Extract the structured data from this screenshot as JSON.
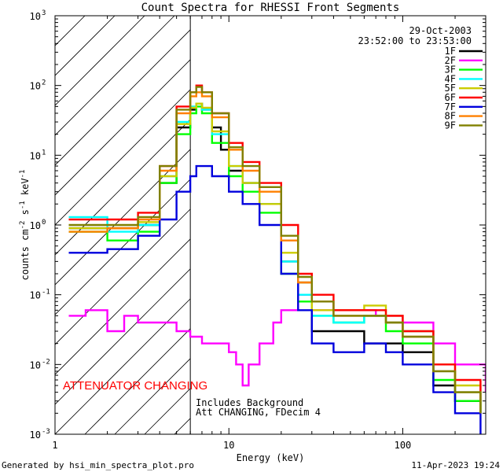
{
  "chart_data": {
    "type": "line",
    "title": "Count Spectra for RHESSI Front Segments",
    "xlabel": "Energy (keV)",
    "ylabel": "counts cm^-2 s^-1 keV^-1",
    "xscale": "log",
    "yscale": "log",
    "xlim": [
      1,
      300
    ],
    "ylim": [
      0.001,
      1000
    ],
    "x_tick_labels": [
      "1",
      "10",
      "100"
    ],
    "y_tick_labels": [
      {
        "base": "10",
        "exp": "-3"
      },
      {
        "base": "10",
        "exp": "-2"
      },
      {
        "base": "10",
        "exp": "-1"
      },
      {
        "base": "10",
        "exp": "0"
      },
      {
        "base": "10",
        "exp": "1"
      },
      {
        "base": "10",
        "exp": "2"
      },
      {
        "base": "10",
        "exp": "3"
      }
    ],
    "attenuator_boundary_kev": 6,
    "legend_header": {
      "date": "29-Oct-2003",
      "time_range": "23:52:00 to 23:53:00"
    },
    "annotations": {
      "attenuator": "ATTENUATOR CHANGING",
      "line1": "Includes Background",
      "line2": "Att CHANGING, FDecim 4"
    },
    "series": [
      {
        "name": "1F",
        "color": "#000000",
        "points": [
          [
            1.2,
            0.9
          ],
          [
            2,
            0.9
          ],
          [
            3,
            1.0
          ],
          [
            4,
            4
          ],
          [
            5,
            25
          ],
          [
            6,
            45
          ],
          [
            6.5,
            55
          ],
          [
            7,
            45
          ],
          [
            8,
            25
          ],
          [
            9,
            12
          ],
          [
            10,
            6
          ],
          [
            12,
            4
          ],
          [
            15,
            2
          ],
          [
            20,
            0.3
          ],
          [
            25,
            0.15
          ],
          [
            30,
            0.03
          ],
          [
            40,
            0.03
          ],
          [
            60,
            0.02
          ],
          [
            80,
            0.02
          ],
          [
            100,
            0.015
          ],
          [
            150,
            0.005
          ],
          [
            200,
            0.003
          ],
          [
            280,
            0.002
          ]
        ]
      },
      {
        "name": "2F",
        "color": "#ff00ff",
        "points": [
          [
            1.2,
            0.05
          ],
          [
            1.5,
            0.06
          ],
          [
            2,
            0.03
          ],
          [
            2.5,
            0.05
          ],
          [
            3,
            0.04
          ],
          [
            4,
            0.04
          ],
          [
            5,
            0.03
          ],
          [
            6,
            0.025
          ],
          [
            7,
            0.02
          ],
          [
            8,
            0.02
          ],
          [
            9,
            0.02
          ],
          [
            10,
            0.015
          ],
          [
            11,
            0.01
          ],
          [
            12,
            0.005
          ],
          [
            13,
            0.01
          ],
          [
            15,
            0.02
          ],
          [
            18,
            0.04
          ],
          [
            20,
            0.06
          ],
          [
            25,
            0.1
          ],
          [
            30,
            0.06
          ],
          [
            50,
            0.06
          ],
          [
            70,
            0.05
          ],
          [
            100,
            0.04
          ],
          [
            150,
            0.02
          ],
          [
            200,
            0.01
          ],
          [
            300,
            0.004
          ]
        ]
      },
      {
        "name": "3F",
        "color": "#00ff00",
        "points": [
          [
            1.2,
            0.8
          ],
          [
            2,
            0.6
          ],
          [
            3,
            0.8
          ],
          [
            4,
            4
          ],
          [
            5,
            20
          ],
          [
            6,
            40
          ],
          [
            6.5,
            50
          ],
          [
            7,
            40
          ],
          [
            8,
            15
          ],
          [
            10,
            5
          ],
          [
            12,
            3
          ],
          [
            15,
            1.5
          ],
          [
            20,
            0.2
          ],
          [
            25,
            0.08
          ],
          [
            30,
            0.05
          ],
          [
            40,
            0.04
          ],
          [
            60,
            0.05
          ],
          [
            80,
            0.03
          ],
          [
            100,
            0.02
          ],
          [
            150,
            0.006
          ],
          [
            200,
            0.003
          ],
          [
            280,
            0.002
          ]
        ]
      },
      {
        "name": "4F",
        "color": "#00ffff",
        "points": [
          [
            1.2,
            1.3
          ],
          [
            2,
            0.8
          ],
          [
            3,
            1.0
          ],
          [
            4,
            5
          ],
          [
            5,
            30
          ],
          [
            6,
            50
          ],
          [
            6.5,
            55
          ],
          [
            7,
            45
          ],
          [
            8,
            20
          ],
          [
            10,
            7
          ],
          [
            12,
            4
          ],
          [
            15,
            2
          ],
          [
            20,
            0.3
          ],
          [
            25,
            0.1
          ],
          [
            30,
            0.05
          ],
          [
            40,
            0.04
          ],
          [
            60,
            0.05
          ],
          [
            80,
            0.04
          ],
          [
            100,
            0.03
          ],
          [
            150,
            0.008
          ],
          [
            200,
            0.004
          ],
          [
            280,
            0.002
          ]
        ]
      },
      {
        "name": "5F",
        "color": "#cccc00",
        "points": [
          [
            1.2,
            0.9
          ],
          [
            2,
            0.9
          ],
          [
            3,
            1.1
          ],
          [
            4,
            5
          ],
          [
            5,
            28
          ],
          [
            6,
            48
          ],
          [
            6.5,
            55
          ],
          [
            7,
            48
          ],
          [
            8,
            22
          ],
          [
            10,
            7
          ],
          [
            12,
            4
          ],
          [
            15,
            2
          ],
          [
            20,
            0.4
          ],
          [
            25,
            0.15
          ],
          [
            30,
            0.06
          ],
          [
            40,
            0.06
          ],
          [
            60,
            0.07
          ],
          [
            80,
            0.05
          ],
          [
            100,
            0.03
          ],
          [
            150,
            0.01
          ],
          [
            200,
            0.005
          ],
          [
            280,
            0.002
          ]
        ]
      },
      {
        "name": "6F",
        "color": "#ff0000",
        "points": [
          [
            1.2,
            1.2
          ],
          [
            2,
            1.2
          ],
          [
            3,
            1.5
          ],
          [
            4,
            7
          ],
          [
            5,
            50
          ],
          [
            6,
            80
          ],
          [
            6.5,
            100
          ],
          [
            7,
            80
          ],
          [
            8,
            40
          ],
          [
            10,
            15
          ],
          [
            12,
            8
          ],
          [
            15,
            4
          ],
          [
            20,
            1
          ],
          [
            25,
            0.2
          ],
          [
            30,
            0.1
          ],
          [
            40,
            0.06
          ],
          [
            60,
            0.06
          ],
          [
            80,
            0.05
          ],
          [
            100,
            0.03
          ],
          [
            150,
            0.01
          ],
          [
            200,
            0.006
          ],
          [
            280,
            0.003
          ]
        ]
      },
      {
        "name": "7F",
        "color": "#0000dd",
        "points": [
          [
            1.2,
            0.4
          ],
          [
            1.5,
            0.4
          ],
          [
            2,
            0.45
          ],
          [
            3,
            0.7
          ],
          [
            4,
            1.2
          ],
          [
            5,
            3
          ],
          [
            6,
            5
          ],
          [
            6.5,
            7
          ],
          [
            7,
            7
          ],
          [
            8,
            5
          ],
          [
            10,
            3
          ],
          [
            12,
            2
          ],
          [
            15,
            1
          ],
          [
            20,
            0.2
          ],
          [
            25,
            0.06
          ],
          [
            30,
            0.02
          ],
          [
            40,
            0.015
          ],
          [
            60,
            0.02
          ],
          [
            80,
            0.015
          ],
          [
            100,
            0.01
          ],
          [
            150,
            0.004
          ],
          [
            200,
            0.002
          ],
          [
            280,
            0.001
          ]
        ]
      },
      {
        "name": "8F",
        "color": "#ff8000",
        "points": [
          [
            1.2,
            0.8
          ],
          [
            2,
            0.9
          ],
          [
            3,
            1.2
          ],
          [
            4,
            6
          ],
          [
            5,
            40
          ],
          [
            6,
            70
          ],
          [
            6.5,
            80
          ],
          [
            7,
            70
          ],
          [
            8,
            35
          ],
          [
            10,
            12
          ],
          [
            12,
            6
          ],
          [
            15,
            3
          ],
          [
            20,
            0.6
          ],
          [
            25,
            0.15
          ],
          [
            30,
            0.08
          ],
          [
            40,
            0.05
          ],
          [
            60,
            0.05
          ],
          [
            80,
            0.04
          ],
          [
            100,
            0.025
          ],
          [
            150,
            0.008
          ],
          [
            200,
            0.004
          ],
          [
            280,
            0.002
          ]
        ]
      },
      {
        "name": "9F",
        "color": "#808000",
        "points": [
          [
            1.2,
            1.0
          ],
          [
            2,
            1.0
          ],
          [
            3,
            1.3
          ],
          [
            4,
            7
          ],
          [
            5,
            45
          ],
          [
            6,
            80
          ],
          [
            6.5,
            95
          ],
          [
            7,
            80
          ],
          [
            8,
            40
          ],
          [
            10,
            13
          ],
          [
            12,
            7
          ],
          [
            15,
            3.5
          ],
          [
            20,
            0.7
          ],
          [
            25,
            0.18
          ],
          [
            30,
            0.08
          ],
          [
            40,
            0.05
          ],
          [
            60,
            0.05
          ],
          [
            80,
            0.04
          ],
          [
            100,
            0.025
          ],
          [
            150,
            0.008
          ],
          [
            200,
            0.004
          ],
          [
            280,
            0.002
          ]
        ]
      }
    ]
  },
  "footer": {
    "generated_by": "Generated by hsi_min_spectra_plot.pro",
    "date_stamp": "11-Apr-2023 19:24"
  }
}
